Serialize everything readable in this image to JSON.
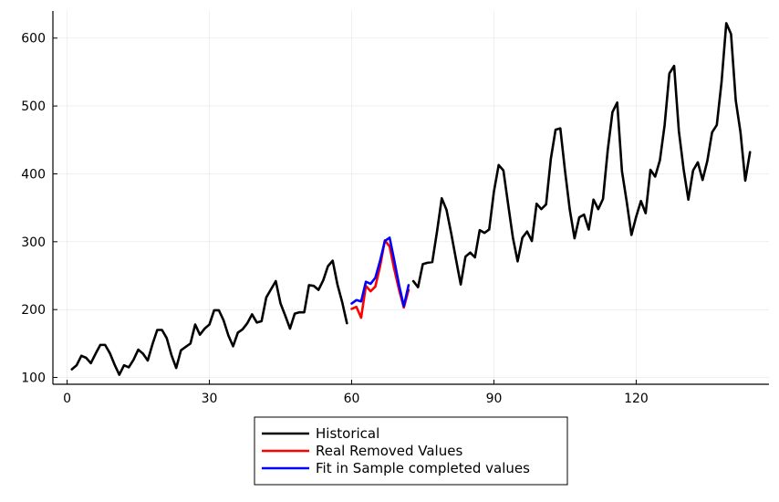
{
  "chart_data": {
    "type": "line",
    "title": "",
    "xlabel": "",
    "ylabel": "",
    "xlim": [
      -3,
      148
    ],
    "ylim": [
      90,
      640
    ],
    "xticks": [
      0,
      30,
      60,
      90,
      120
    ],
    "yticks": [
      100,
      200,
      300,
      400,
      500,
      600
    ],
    "grid": true,
    "legend_position": "bottom-center",
    "series": [
      {
        "name": "Historical",
        "color": "#000000",
        "segments": [
          {
            "x_start": 1,
            "values": [
              112,
              118,
              132,
              129,
              121,
              135,
              148,
              148,
              136,
              119,
              104,
              118,
              115,
              126,
              141,
              135,
              125,
              149,
              170,
              170,
              158,
              133,
              114,
              140,
              145,
              150,
              178,
              163,
              172,
              178,
              199,
              199,
              184,
              162,
              146,
              166,
              171,
              180,
              193,
              181,
              183,
              218,
              230,
              242,
              209,
              191,
              172,
              194,
              196,
              196,
              236,
              235,
              229,
              243,
              264,
              272,
              237,
              211,
              180
            ]
          },
          {
            "x_start": 73,
            "values": [
              242,
              233,
              267,
              269,
              270,
              315,
              364,
              347,
              312,
              274,
              237,
              278,
              284,
              277,
              317,
              313,
              318,
              374,
              413,
              405,
              355,
              306,
              271,
              306,
              315,
              301,
              356,
              348,
              355,
              422,
              465,
              467,
              404,
              347,
              305,
              336,
              340,
              318,
              362,
              348,
              363,
              435,
              491,
              505,
              404,
              359,
              310,
              337,
              360,
              342,
              406,
              396,
              420,
              472,
              548,
              559,
              463,
              407,
              362,
              405,
              417,
              391,
              419,
              461,
              472,
              535,
              622,
              606,
              508,
              461,
              390,
              432
            ]
          }
        ]
      },
      {
        "name": "Real Removed Values",
        "color": "#ff0000",
        "segments": [
          {
            "x_start": 60,
            "values": [
              201,
              204,
              188,
              235,
              227,
              234,
              264,
              302,
              293,
              259,
              229,
              203,
              229
            ]
          }
        ]
      },
      {
        "name": "Fit in Sample completed values",
        "color": "#0000ff",
        "segments": [
          {
            "x_start": 60,
            "values": [
              209,
              214,
              212,
              241,
              238,
              247,
              272,
              301,
              306,
              272,
              236,
              205,
              236
            ]
          }
        ]
      }
    ]
  }
}
